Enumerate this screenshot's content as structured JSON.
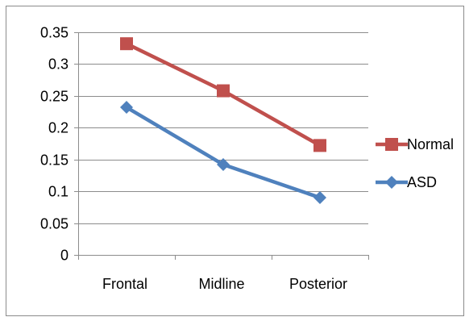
{
  "chart_data": {
    "type": "line",
    "title": "",
    "xlabel": "",
    "ylabel": "",
    "categories": [
      "Frontal",
      "Midline",
      "Posterior"
    ],
    "ylim": [
      0,
      0.35
    ],
    "yticks": [
      "0",
      "0.05",
      "0.1",
      "0.15",
      "0.2",
      "0.25",
      "0.3",
      "0.35"
    ],
    "grid": true,
    "legend_position": "right",
    "series": [
      {
        "name": "Normal",
        "values": [
          0.332,
          0.258,
          0.172
        ],
        "color": "#C0504D",
        "marker": "square"
      },
      {
        "name": "ASD",
        "values": [
          0.232,
          0.142,
          0.09
        ],
        "color": "#4F81BD",
        "marker": "diamond"
      }
    ]
  }
}
